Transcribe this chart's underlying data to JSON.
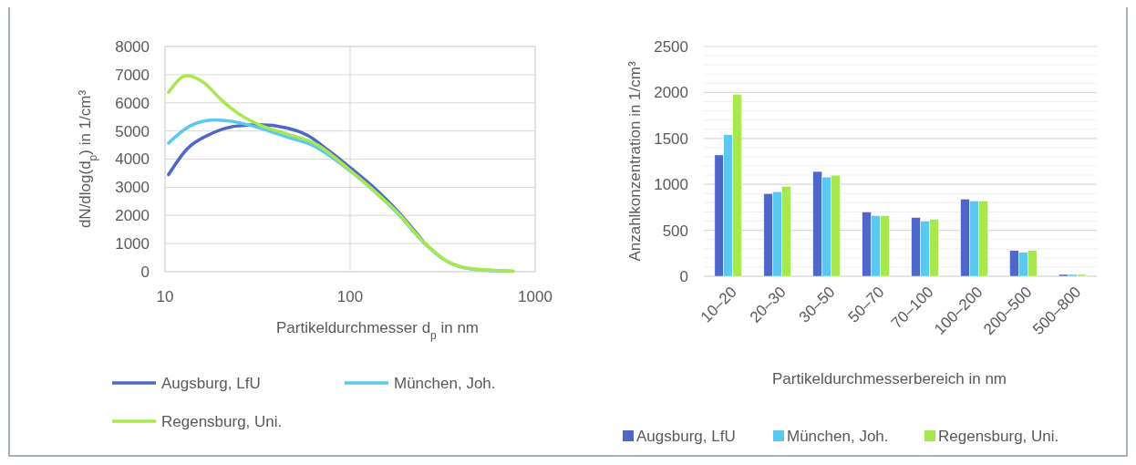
{
  "chart_data": [
    {
      "type": "line",
      "xlabel": "Partikeldurchmesser d$_{p}$ in nm",
      "ylabel": "dN/dlog(d$_{p}$) in 1/cm³",
      "log": "x",
      "xlim": [
        10,
        1000
      ],
      "xticks": [
        10,
        100,
        1000
      ],
      "ylim": [
        0,
        8000
      ],
      "yticks": [
        0,
        1000,
        2000,
        3000,
        4000,
        5000,
        6000,
        7000,
        8000
      ],
      "grid": true,
      "legend": "bottom",
      "line_style": "solid",
      "marker": "none",
      "series": [
        {
          "name": "Augsburg, LfU",
          "color": "#4f67c8",
          "x": [
            10.45,
            13.1,
            17.7,
            24,
            32.3,
            45.3,
            59,
            76.6,
            100,
            140,
            182,
            247
          ],
          "values": [
            3450,
            4350,
            4900,
            5170,
            5220,
            5110,
            4840,
            4300,
            3700,
            2880,
            2120,
            1100
          ]
        },
        {
          "name": "München, Joh.",
          "color": "#5bc8f0",
          "x": [
            10.45,
            13.6,
            18.4,
            23,
            32.3,
            45.3,
            61.3,
            100,
            140,
            182,
            247,
            333,
            450,
            760
          ],
          "values": [
            4570,
            5170,
            5390,
            5340,
            5110,
            4790,
            4520,
            3580,
            2760,
            2050,
            1070,
            370,
            100,
            20
          ]
        },
        {
          "name": "Regensburg, Uni.",
          "color": "#a8e84e",
          "x": [
            10.45,
            13.1,
            16.4,
            19.8,
            25.8,
            32.3,
            45.3,
            66.1,
            100,
            140,
            182,
            247,
            333,
            450,
            760
          ],
          "values": [
            6370,
            6960,
            6690,
            6150,
            5550,
            5220,
            4900,
            4520,
            3600,
            2780,
            2070,
            1090,
            380,
            110,
            20
          ]
        }
      ]
    },
    {
      "type": "bar",
      "xlabel": "Partikeldurchmesserbereich in nm",
      "ylabel": "Anzahlkonzentration in 1/cm³",
      "categories": [
        "10–20",
        "20–30",
        "30–50",
        "50–70",
        "70–100",
        "100–200",
        "200–500",
        "500–800"
      ],
      "ylim": [
        0,
        2500
      ],
      "yticks": [
        0,
        {
          "value": 100,
          "label": null
        },
        {
          "value": 200,
          "label": null
        },
        {
          "value": 300,
          "label": null
        },
        {
          "value": 400,
          "label": null
        },
        500,
        {
          "value": 600,
          "label": null
        },
        {
          "value": 700,
          "label": null
        },
        {
          "value": 800,
          "label": null
        },
        {
          "value": 900,
          "label": null
        },
        1000,
        {
          "value": 1100,
          "label": null
        },
        {
          "value": 1200,
          "label": null
        },
        {
          "value": 1300,
          "label": null
        },
        {
          "value": 1400,
          "label": null
        },
        1500,
        {
          "value": 1600,
          "label": null
        },
        {
          "value": 1700,
          "label": null
        },
        {
          "value": 1800,
          "label": null
        },
        {
          "value": 1900,
          "label": null
        },
        2000,
        {
          "value": 2100,
          "label": null
        },
        {
          "value": 2200,
          "label": null
        },
        {
          "value": 2300,
          "label": null
        },
        {
          "value": 2400,
          "label": null
        },
        2500
      ],
      "grid": "y",
      "legend": "bottom",
      "series": [
        {
          "name": "Augsburg, LfU",
          "color": "#4f67c8",
          "values": [
            1320,
            900,
            1140,
            700,
            640,
            840,
            280,
            20
          ]
        },
        {
          "name": "München, Joh.",
          "color": "#5bc8f0",
          "values": [
            1540,
            920,
            1080,
            660,
            600,
            820,
            260,
            20
          ]
        },
        {
          "name": "Regensburg, Uni.",
          "color": "#a8e84e",
          "values": [
            1980,
            980,
            1100,
            660,
            620,
            820,
            280,
            20
          ]
        }
      ]
    }
  ]
}
